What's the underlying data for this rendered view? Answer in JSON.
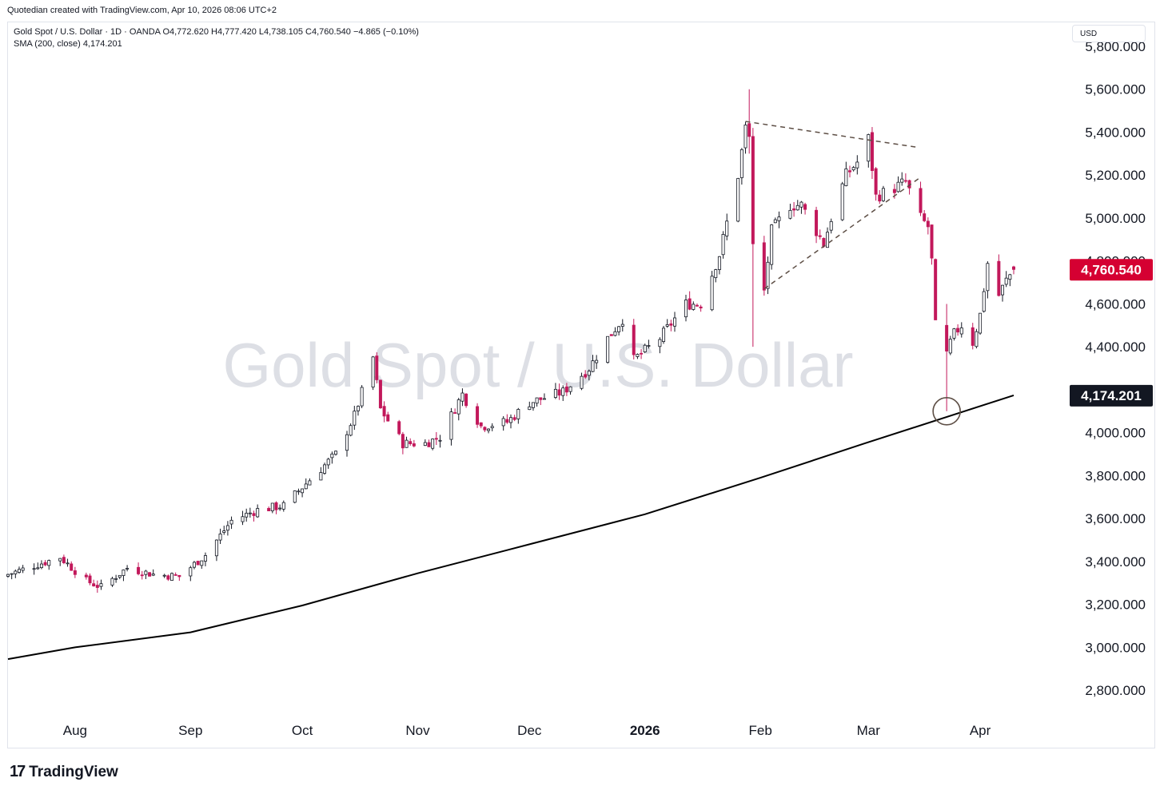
{
  "attribution": "Quotedian created with TradingView.com, Apr 10, 2026 08:06 UTC+2",
  "legend": {
    "line1": "Gold Spot / U.S. Dollar · 1D · OANDA  O4,772.620  H4,777.420  L4,738.105  C4,760.540  −4.865 (−0.10%)",
    "line2": "SMA (200, close)  4,174.201"
  },
  "watermark": "Gold Spot / U.S. Dollar",
  "currency": "USD",
  "brand": {
    "mark": "17",
    "name": "TradingView"
  },
  "colors": {
    "up": "#ffffff",
    "up_border": "#131722",
    "down": "#c2185b",
    "sma": "#000000",
    "price_badge": "#d50032",
    "sma_badge": "#131722"
  },
  "chart_data": {
    "type": "candlestick",
    "title": "Gold Spot / U.S. Dollar · 1D · OANDA",
    "ylim": [
      2760,
      5830
    ],
    "y_ticks": [
      "2,800.000",
      "3,000.000",
      "3,200.000",
      "3,400.000",
      "3,600.000",
      "3,800.000",
      "4,000.000",
      "4,200.000",
      "4,400.000",
      "4,600.000",
      "4,800.000",
      "5,000.000",
      "5,200.000",
      "5,400.000",
      "5,600.000",
      "5,800.000"
    ],
    "x_ticks": [
      "Aug",
      "Sep",
      "Oct",
      "Nov",
      "Dec",
      "2026",
      "Feb",
      "Mar",
      "Apr"
    ],
    "bold_x_ticks": [
      "2026"
    ],
    "date_range": [
      "2025-07-14",
      "2026-04-10"
    ],
    "last_price": "4,760.540",
    "sma_value": "4,174.201",
    "sma_label": "SMA (200, close)",
    "sma_series": [
      {
        "date": "2025-07-14",
        "value": 2945
      },
      {
        "date": "2025-08-01",
        "value": 3000
      },
      {
        "date": "2025-09-01",
        "value": 3070
      },
      {
        "date": "2025-10-01",
        "value": 3195
      },
      {
        "date": "2025-11-01",
        "value": 3345
      },
      {
        "date": "2025-12-01",
        "value": 3480
      },
      {
        "date": "2026-01-01",
        "value": 3620
      },
      {
        "date": "2026-02-01",
        "value": 3790
      },
      {
        "date": "2026-03-01",
        "value": 3950
      },
      {
        "date": "2026-04-10",
        "value": 4174
      }
    ],
    "anchors": [
      {
        "date": "2025-07-14",
        "close": 3340
      },
      {
        "date": "2025-07-28",
        "close": 3420
      },
      {
        "date": "2025-08-04",
        "close": 3310
      },
      {
        "date": "2025-08-08",
        "close": 3280
      },
      {
        "date": "2025-08-15",
        "close": 3370
      },
      {
        "date": "2025-08-22",
        "close": 3340
      },
      {
        "date": "2025-08-29",
        "close": 3330
      },
      {
        "date": "2025-09-05",
        "close": 3430
      },
      {
        "date": "2025-09-12",
        "close": 3590
      },
      {
        "date": "2025-09-19",
        "close": 3640
      },
      {
        "date": "2025-09-26",
        "close": 3660
      },
      {
        "date": "2025-10-03",
        "close": 3780
      },
      {
        "date": "2025-10-10",
        "close": 3900
      },
      {
        "date": "2025-10-15",
        "close": 4080
      },
      {
        "date": "2025-10-20",
        "close": 4350
      },
      {
        "date": "2025-10-22",
        "close": 4110
      },
      {
        "date": "2025-10-28",
        "close": 3950
      },
      {
        "date": "2025-11-03",
        "close": 3950
      },
      {
        "date": "2025-11-07",
        "close": 3980
      },
      {
        "date": "2025-11-13",
        "close": 4180
      },
      {
        "date": "2025-11-18",
        "close": 4030
      },
      {
        "date": "2025-11-25",
        "close": 4050
      },
      {
        "date": "2025-12-01",
        "close": 4140
      },
      {
        "date": "2025-12-10",
        "close": 4190
      },
      {
        "date": "2025-12-17",
        "close": 4300
      },
      {
        "date": "2025-12-22",
        "close": 4440
      },
      {
        "date": "2025-12-26",
        "close": 4530
      },
      {
        "date": "2025-12-29",
        "close": 4340
      },
      {
        "date": "2026-01-05",
        "close": 4440
      },
      {
        "date": "2026-01-12",
        "close": 4600
      },
      {
        "date": "2026-01-16",
        "close": 4600
      },
      {
        "date": "2026-01-21",
        "close": 4830
      },
      {
        "date": "2026-01-26",
        "close": 5200
      },
      {
        "date": "2026-01-28",
        "close": 5420
      },
      {
        "date": "2026-01-29",
        "close": 5380
      },
      {
        "date": "2026-01-30",
        "close": 4880
      },
      {
        "date": "2026-02-02",
        "close": 4660
      },
      {
        "date": "2026-02-04",
        "close": 4940
      },
      {
        "date": "2026-02-09",
        "close": 5060
      },
      {
        "date": "2026-02-12",
        "close": 5060
      },
      {
        "date": "2026-02-18",
        "close": 4880
      },
      {
        "date": "2026-02-20",
        "close": 5000
      },
      {
        "date": "2026-02-24",
        "close": 5200
      },
      {
        "date": "2026-02-27",
        "close": 5260
      },
      {
        "date": "2026-03-02",
        "close": 5370
      },
      {
        "date": "2026-03-04",
        "close": 5100
      },
      {
        "date": "2026-03-09",
        "close": 5140
      },
      {
        "date": "2026-03-12",
        "close": 5170
      },
      {
        "date": "2026-03-16",
        "close": 5000
      },
      {
        "date": "2026-03-18",
        "close": 4960
      },
      {
        "date": "2026-03-19",
        "close": 4800
      },
      {
        "date": "2026-03-20",
        "close": 4500
      },
      {
        "date": "2026-03-23",
        "close": 4380
      },
      {
        "date": "2026-03-25",
        "close": 4460
      },
      {
        "date": "2026-03-27",
        "close": 4500
      },
      {
        "date": "2026-03-30",
        "close": 4420
      },
      {
        "date": "2026-04-01",
        "close": 4550
      },
      {
        "date": "2026-04-03",
        "close": 4790
      },
      {
        "date": "2026-04-06",
        "close": 4640
      },
      {
        "date": "2026-04-08",
        "close": 4710
      },
      {
        "date": "2026-04-10",
        "close": 4760
      }
    ],
    "highlight_candles": [
      {
        "date": "2026-01-29",
        "open": 5440,
        "high": 5600,
        "low": 5300,
        "close": 5380
      },
      {
        "date": "2026-01-30",
        "open": 5380,
        "high": 5420,
        "low": 4400,
        "close": 4880
      },
      {
        "date": "2026-03-23",
        "open": 4500,
        "high": 4600,
        "low": 4100,
        "close": 4380
      },
      {
        "date": "2026-04-10",
        "open": 4772.62,
        "high": 4777.42,
        "low": 4738.105,
        "close": 4760.54
      }
    ],
    "annotations": [
      {
        "type": "dashed-line",
        "from": {
          "date": "2026-01-28",
          "value": 5450
        },
        "to": {
          "date": "2026-03-15",
          "value": 5330
        }
      },
      {
        "type": "dashed-line",
        "from": {
          "date": "2026-02-02",
          "value": 4670
        },
        "to": {
          "date": "2026-03-16",
          "value": 5190
        }
      },
      {
        "type": "circle",
        "date": "2026-03-23",
        "value": 4100
      }
    ]
  }
}
